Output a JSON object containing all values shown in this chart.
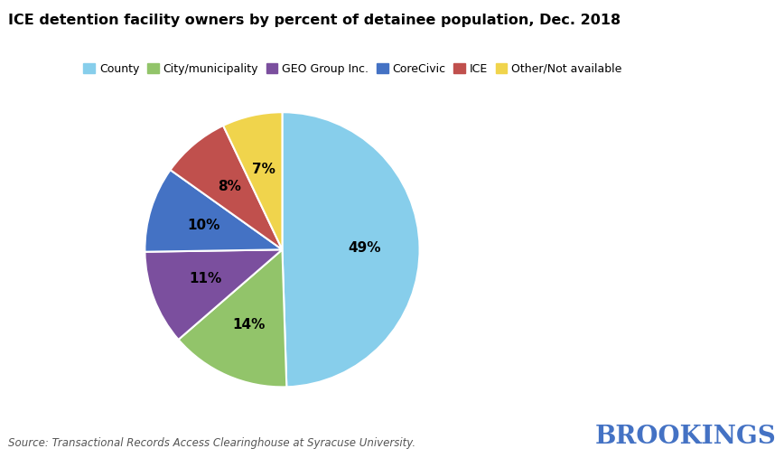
{
  "title": "ICE detention facility owners by percent of detainee population, Dec. 2018",
  "labels": [
    "County",
    "City/municipality",
    "GEO Group Inc.",
    "CoreCivic",
    "ICE",
    "Other/Not available"
  ],
  "values": [
    49,
    14,
    11,
    10,
    8,
    7
  ],
  "colors": [
    "#87CEEB",
    "#92C46A",
    "#7B4F9E",
    "#4472C4",
    "#C0504D",
    "#F0D44C"
  ],
  "pct_labels": [
    "49%",
    "14%",
    "11%",
    "10%",
    "8%",
    "7%"
  ],
  "source_text": "Source: Transactional Records Access Clearinghouse at Syracuse University.",
  "brookings_text": "BROOKINGS",
  "background_color": "#FFFFFF",
  "title_fontsize": 11.5,
  "legend_fontsize": 9,
  "label_fontsize": 11
}
